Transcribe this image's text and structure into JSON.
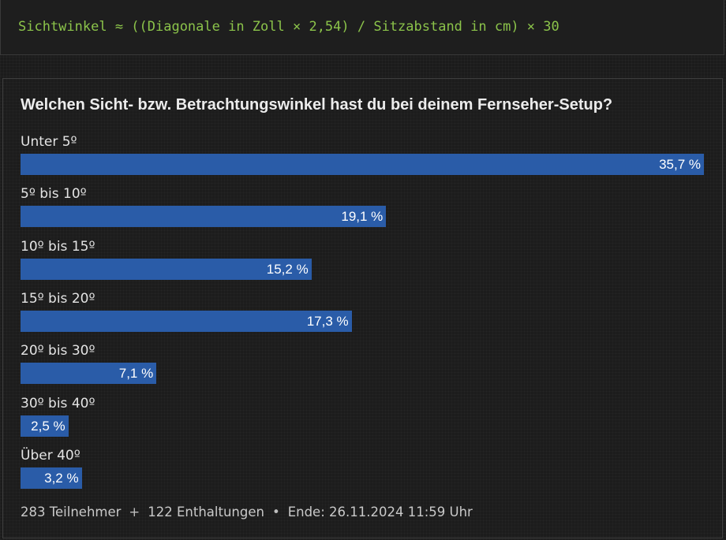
{
  "formula": {
    "text": "Sichtwinkel ≈ ((Diagonale in Zoll × 2,54) / Sitzabstand in cm) × 30"
  },
  "poll": {
    "question": "Welchen Sicht- bzw. Betrachtungswinkel hast du bei deinem Fernseher-Setup?",
    "footer": {
      "participants": "283 Teilnehmer",
      "sep1": "+",
      "abstentions": "122 Enthaltungen",
      "sep2": "•",
      "end": "Ende: 26.11.2024 11:59 Uhr"
    }
  },
  "chart_data": {
    "type": "bar",
    "orientation": "horizontal",
    "title": "Welchen Sicht- bzw. Betrachtungswinkel hast du bei deinem Fernseher-Setup?",
    "categories": [
      "Unter 5º",
      "5º bis 10º",
      "10º bis 15º",
      "15º bis 20º",
      "20º bis 30º",
      "30º bis 40º",
      "Über 40º"
    ],
    "values": [
      35.7,
      19.1,
      15.2,
      17.3,
      7.1,
      2.5,
      3.2
    ],
    "value_labels": [
      "35,7 %",
      "19,1 %",
      "15,2 %",
      "17,3 %",
      "7,1 %",
      "2,5 %",
      "3,2 %"
    ],
    "unit": "%",
    "xlim": [
      0,
      35.7
    ],
    "bar_color": "#2a5ca8"
  }
}
